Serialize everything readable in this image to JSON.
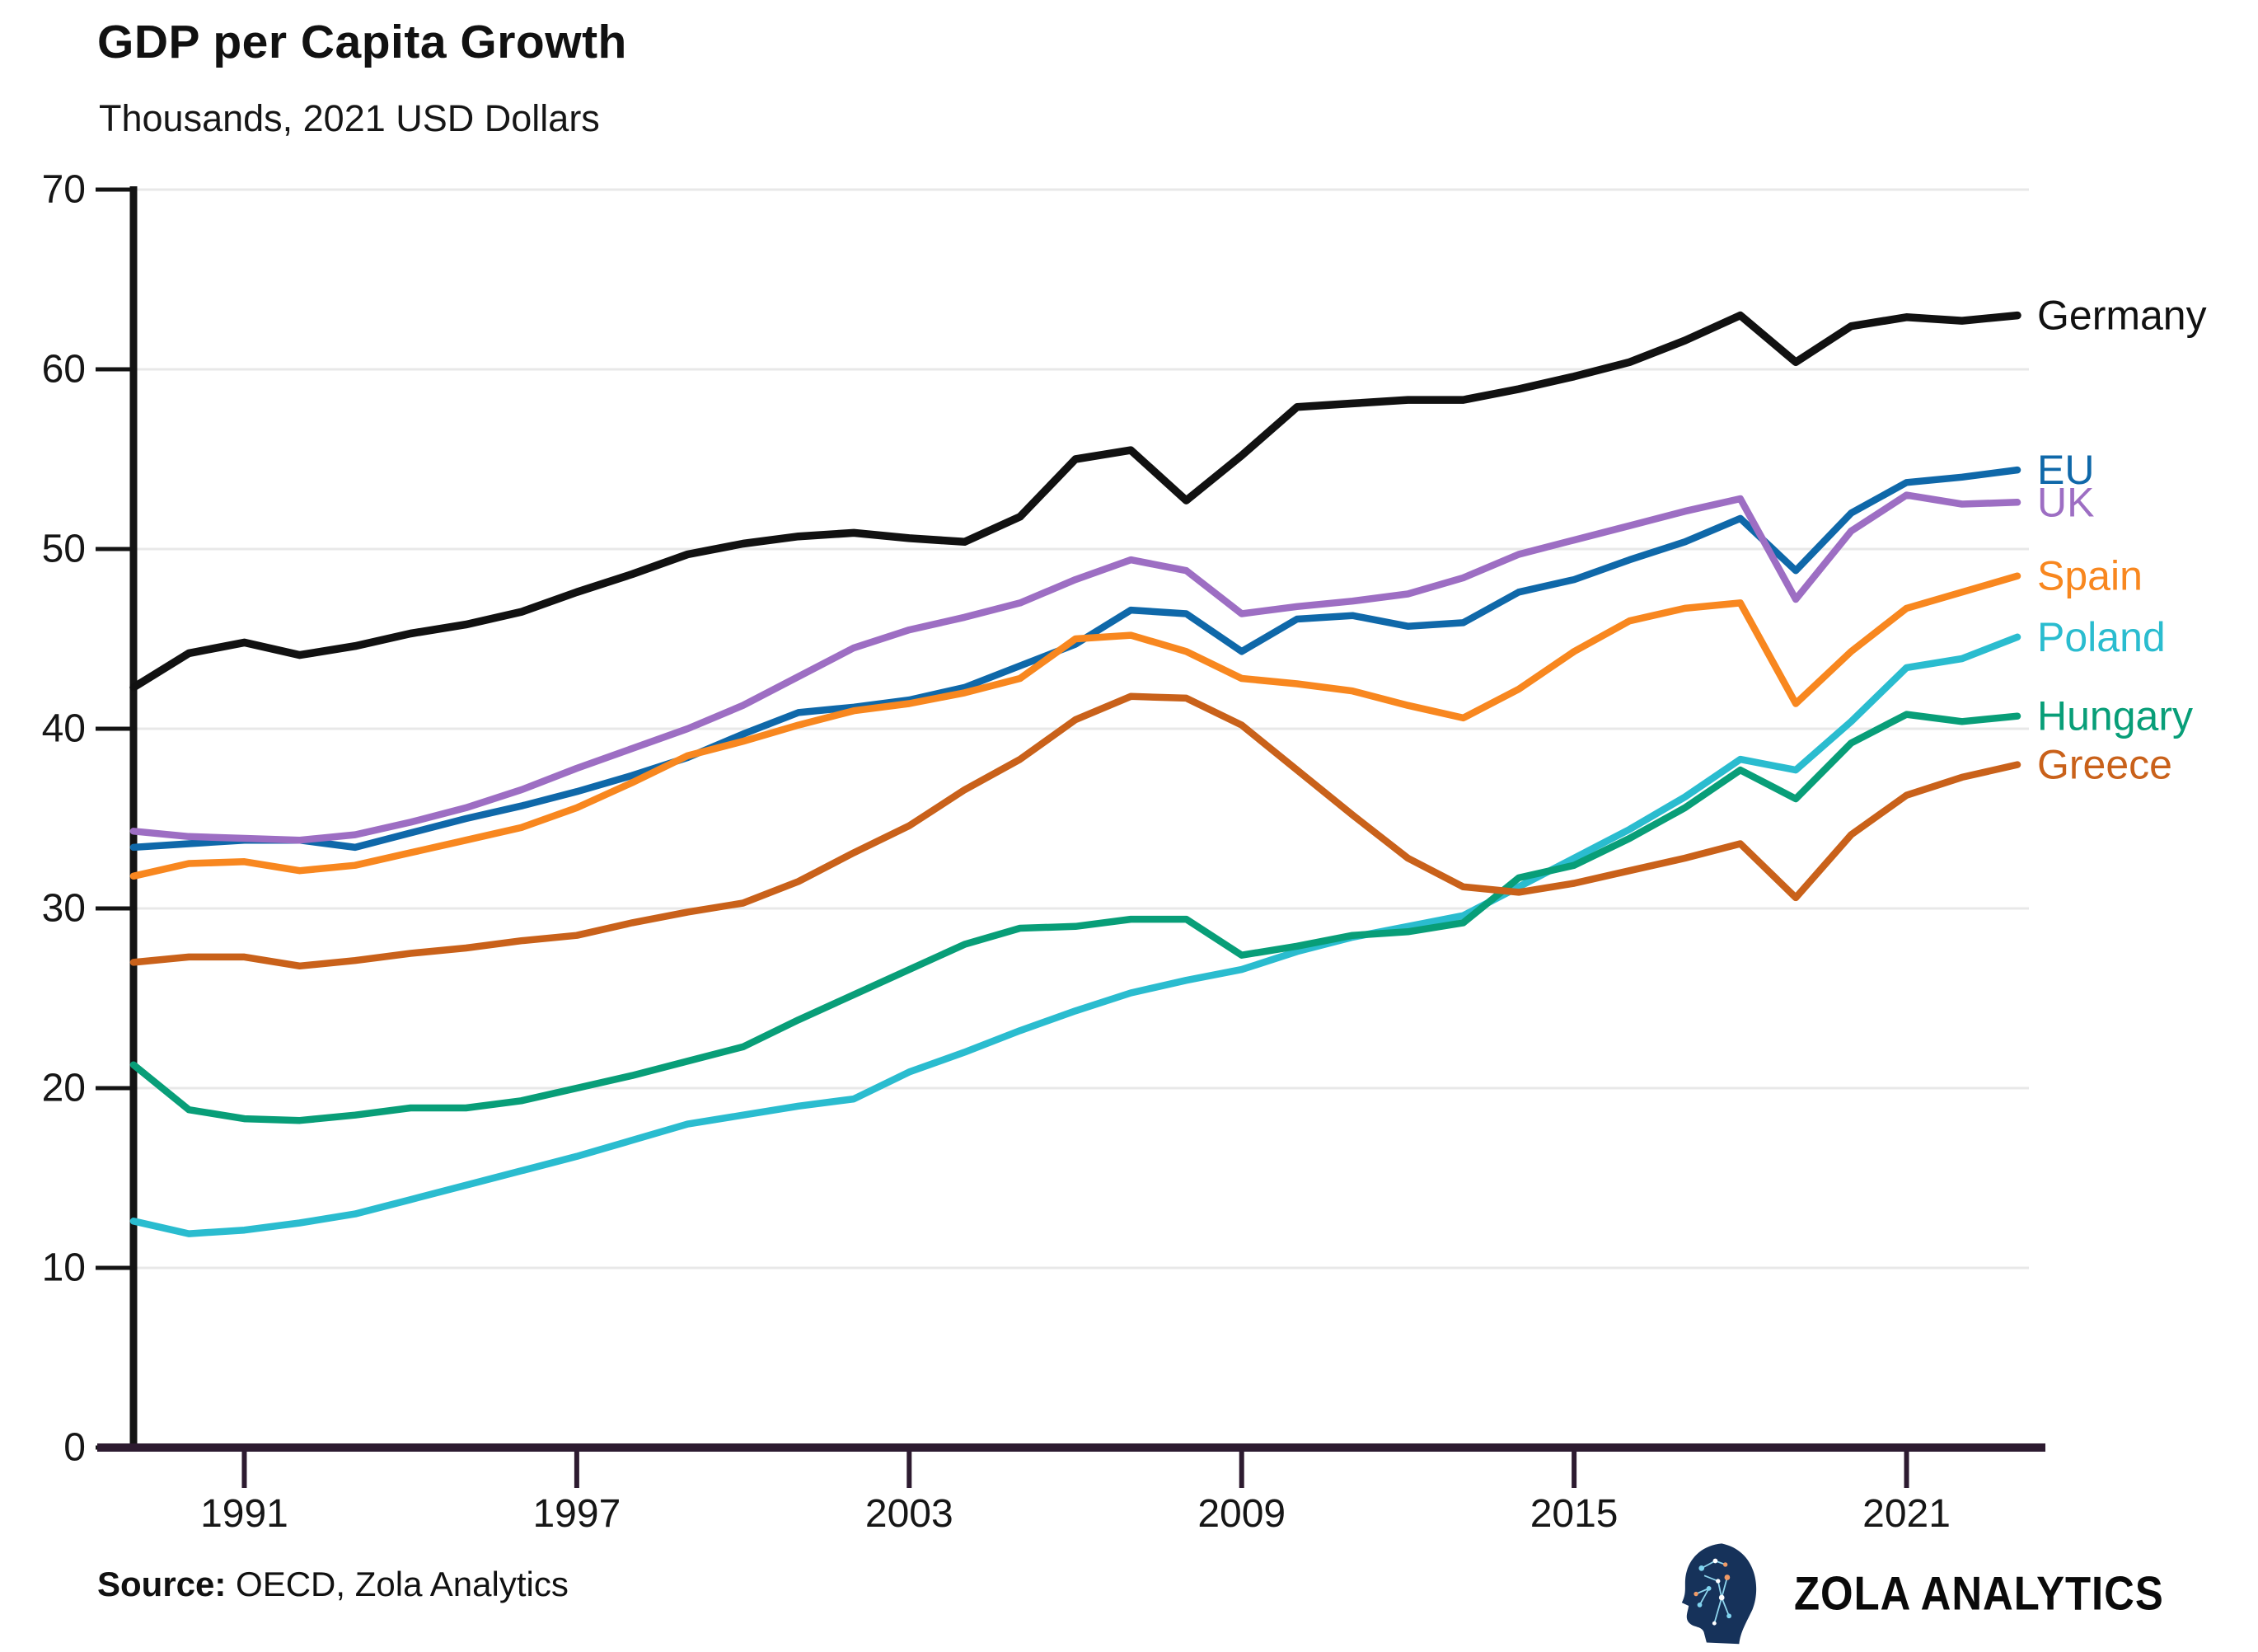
{
  "title": "GDP per Capita Growth",
  "subtitle": "Thousands, 2021 USD Dollars",
  "source": {
    "label": "Source:",
    "text": " OECD, Zola Analytics"
  },
  "branding": {
    "name": "ZOLA ANALYTICS",
    "logo_icon": "head-circuit-icon"
  },
  "chart_data": {
    "type": "line",
    "x_label": "",
    "y_label": "",
    "x": [
      1989,
      1990,
      1991,
      1992,
      1993,
      1994,
      1995,
      1996,
      1997,
      1998,
      1999,
      2000,
      2001,
      2002,
      2003,
      2004,
      2005,
      2006,
      2007,
      2008,
      2009,
      2010,
      2011,
      2012,
      2013,
      2014,
      2015,
      2016,
      2017,
      2018,
      2019,
      2020,
      2021,
      2022,
      2023
    ],
    "x_ticks": [
      1991,
      1997,
      2003,
      2009,
      2015,
      2021
    ],
    "y_ticks": [
      0,
      10,
      20,
      30,
      40,
      50,
      60,
      70
    ],
    "xlim": [
      1989,
      2023
    ],
    "ylim": [
      0,
      70
    ],
    "grid": "horizontal",
    "legend_position": "line-end-labels-right",
    "axis_color": "#141414",
    "x_axis_color": "#2d1b30",
    "grid_color": "#e8e8e8",
    "series": [
      {
        "name": "Germany",
        "color": "#111111",
        "values": [
          42.3,
          44.2,
          44.8,
          44.1,
          44.6,
          45.3,
          45.8,
          46.5,
          47.6,
          48.6,
          49.7,
          50.3,
          50.7,
          50.9,
          50.6,
          50.4,
          51.8,
          55.0,
          55.5,
          52.7,
          55.2,
          57.9,
          58.1,
          58.3,
          58.3,
          58.9,
          59.6,
          60.4,
          61.6,
          63.0,
          60.4,
          62.4,
          62.9,
          62.7,
          63.0
        ]
      },
      {
        "name": "EU",
        "color": "#0f68a9",
        "values": [
          33.4,
          33.6,
          33.8,
          33.8,
          33.4,
          34.2,
          35.0,
          35.7,
          36.5,
          37.4,
          38.4,
          39.7,
          40.9,
          41.2,
          41.6,
          42.3,
          43.5,
          44.7,
          46.6,
          46.4,
          44.3,
          46.1,
          46.3,
          45.7,
          45.9,
          47.6,
          48.3,
          49.4,
          50.4,
          51.7,
          48.8,
          52.0,
          53.7,
          54.0,
          54.4
        ]
      },
      {
        "name": "UK",
        "color": "#9d6ec3",
        "values": [
          34.3,
          34.0,
          33.9,
          33.8,
          34.1,
          34.8,
          35.6,
          36.6,
          37.8,
          38.9,
          40.0,
          41.3,
          42.9,
          44.5,
          45.5,
          46.2,
          47.0,
          48.3,
          49.4,
          48.8,
          46.4,
          46.8,
          47.1,
          47.5,
          48.4,
          49.7,
          50.5,
          51.3,
          52.1,
          52.8,
          47.2,
          51.0,
          53.0,
          52.5,
          52.6
        ]
      },
      {
        "name": "Spain",
        "color": "#f8871f",
        "values": [
          31.8,
          32.5,
          32.6,
          32.1,
          32.4,
          33.1,
          33.8,
          34.5,
          35.6,
          37.0,
          38.5,
          39.3,
          40.2,
          41.0,
          41.4,
          42.0,
          42.8,
          45.0,
          45.2,
          44.3,
          42.8,
          42.5,
          42.1,
          41.3,
          40.6,
          42.2,
          44.3,
          46.0,
          46.7,
          47.0,
          41.4,
          44.3,
          46.7,
          47.6,
          48.5
        ]
      },
      {
        "name": "Poland",
        "color": "#2abccf",
        "values": [
          12.6,
          11.9,
          12.1,
          12.5,
          13.0,
          13.8,
          14.6,
          15.4,
          16.2,
          17.1,
          18.0,
          18.5,
          19.0,
          19.4,
          20.9,
          22.0,
          23.2,
          24.3,
          25.3,
          26.0,
          26.6,
          27.6,
          28.4,
          29.0,
          29.6,
          31.2,
          32.8,
          34.4,
          36.2,
          38.3,
          37.7,
          40.4,
          43.4,
          43.9,
          45.1
        ]
      },
      {
        "name": "Hungary",
        "color": "#089e78",
        "values": [
          21.3,
          18.8,
          18.3,
          18.2,
          18.5,
          18.9,
          18.9,
          19.3,
          20.0,
          20.7,
          21.5,
          22.3,
          23.8,
          25.2,
          26.6,
          28.0,
          28.9,
          29.0,
          29.4,
          29.4,
          27.4,
          27.9,
          28.5,
          28.7,
          29.2,
          31.7,
          32.4,
          33.9,
          35.6,
          37.7,
          36.1,
          39.2,
          40.8,
          40.4,
          40.7
        ]
      },
      {
        "name": "Greece",
        "color": "#c9611a",
        "values": [
          27.0,
          27.3,
          27.3,
          26.8,
          27.1,
          27.5,
          27.8,
          28.2,
          28.5,
          29.2,
          29.8,
          30.3,
          31.5,
          33.1,
          34.6,
          36.6,
          38.3,
          40.5,
          41.8,
          41.7,
          40.2,
          37.7,
          35.2,
          32.8,
          31.2,
          30.9,
          31.4,
          32.1,
          32.8,
          33.6,
          30.6,
          34.1,
          36.3,
          37.3,
          38.0
        ]
      }
    ]
  }
}
